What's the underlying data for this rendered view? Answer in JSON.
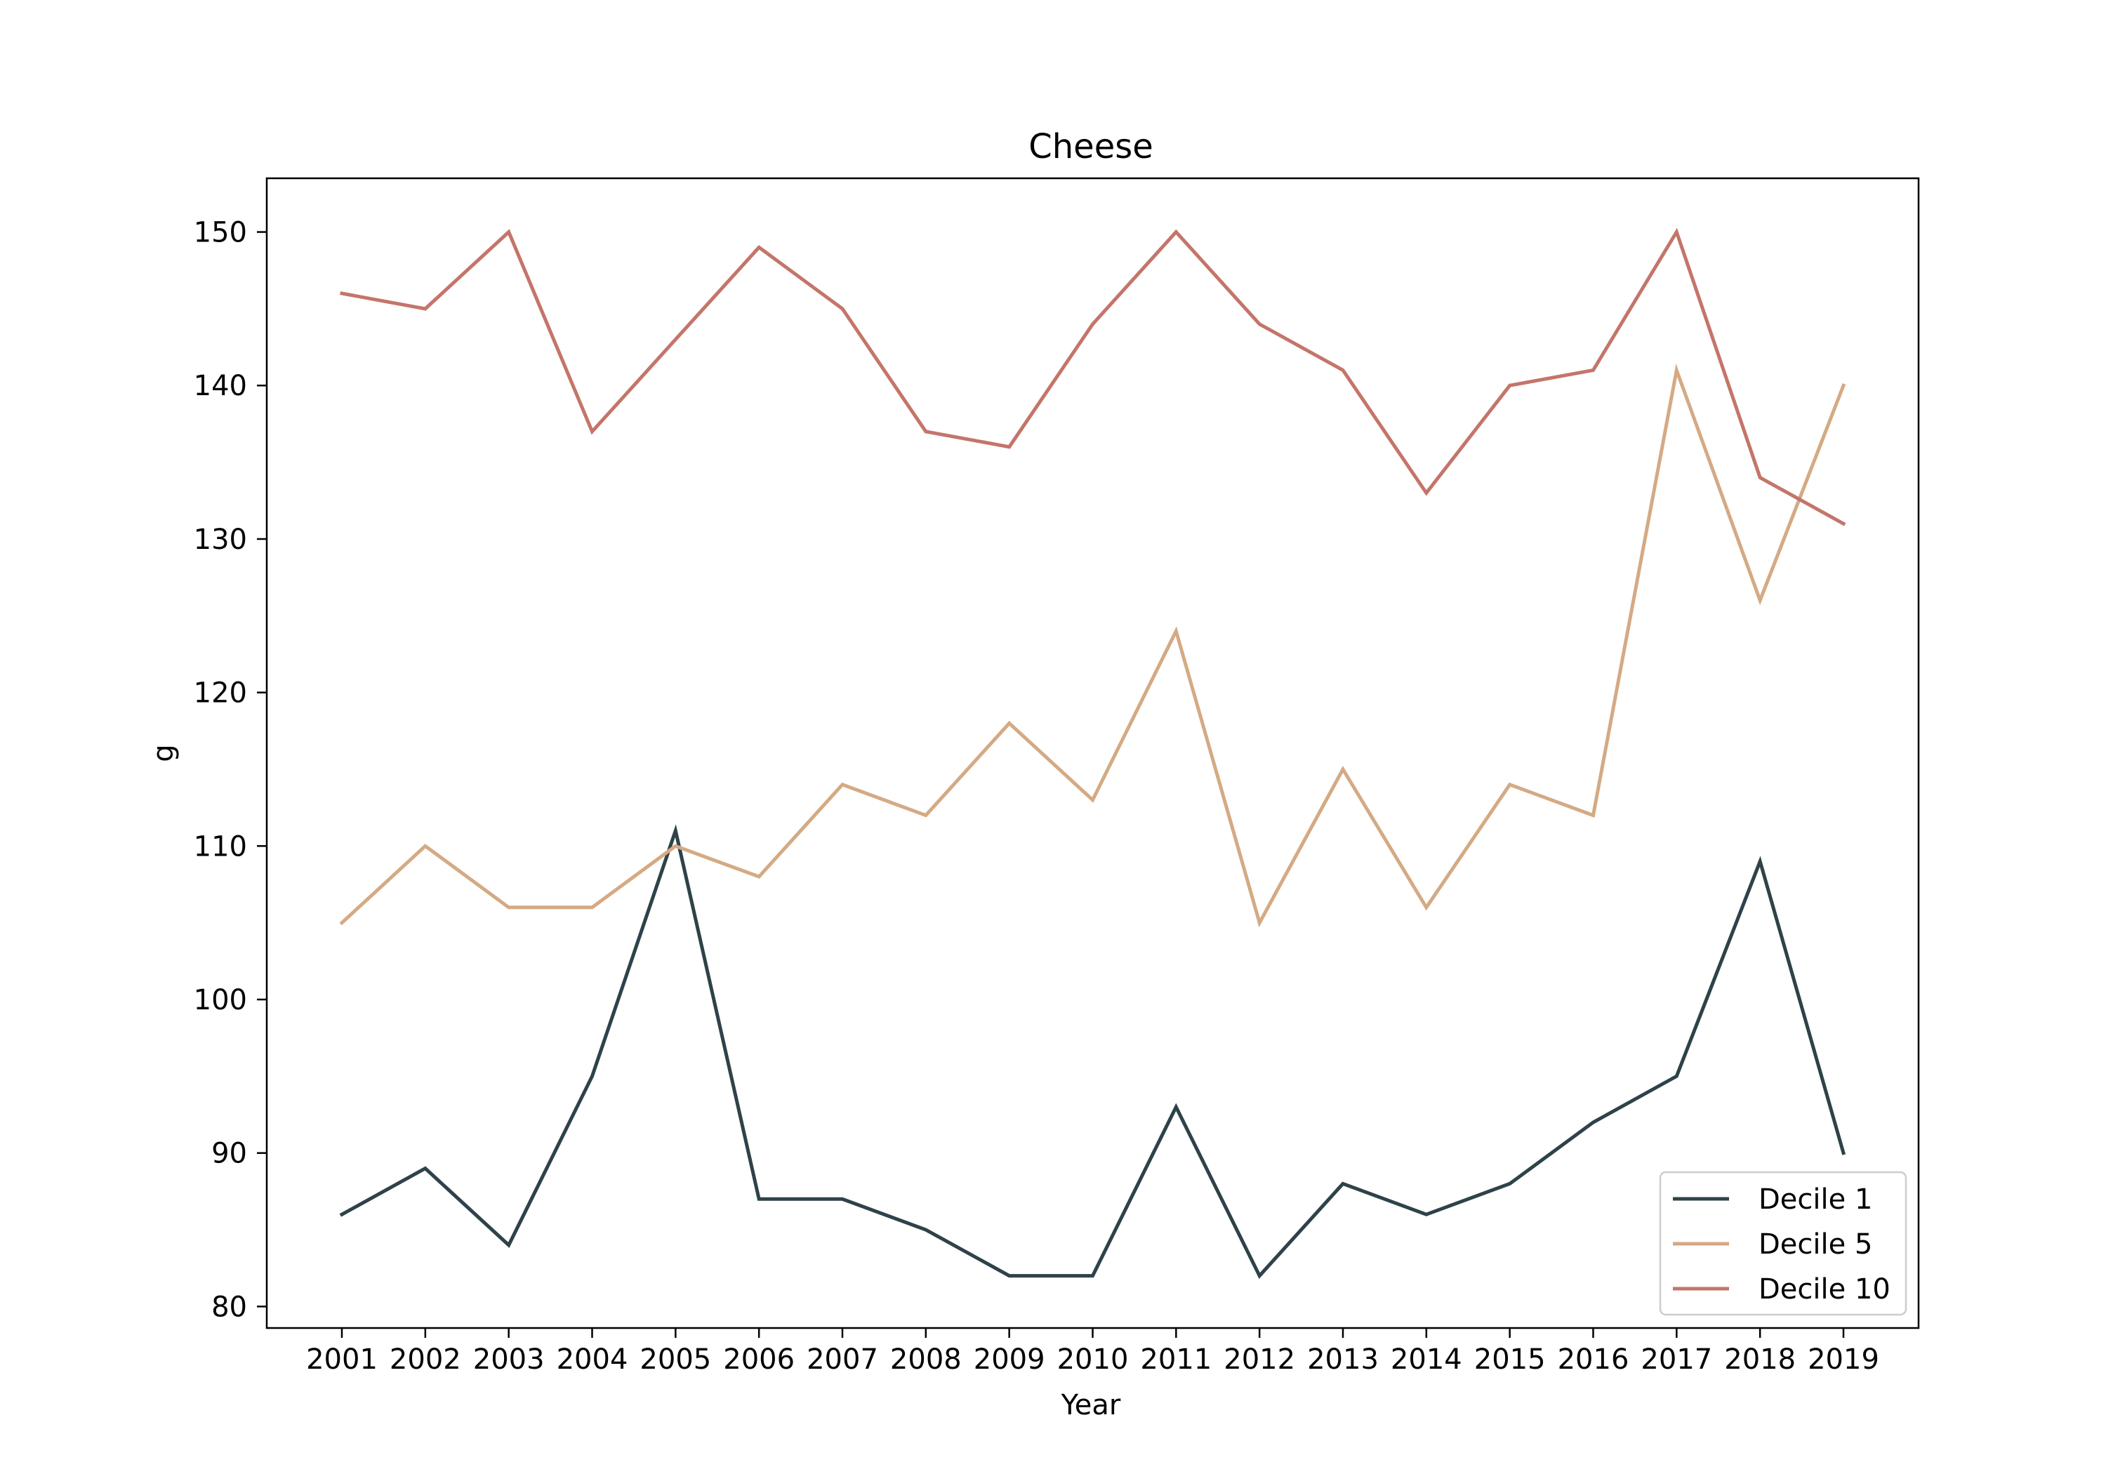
{
  "chart_data": {
    "type": "line",
    "title": "Cheese",
    "xlabel": "Year",
    "ylabel": "g",
    "categories": [
      "2001",
      "2002",
      "2003",
      "2004",
      "2005",
      "2006",
      "2007",
      "2008",
      "2009",
      "2010",
      "2011",
      "2012",
      "2013",
      "2014",
      "2015",
      "2016",
      "2017",
      "2018",
      "2019"
    ],
    "ylim": [
      78.6,
      153.5
    ],
    "yticks": [
      80,
      90,
      100,
      110,
      120,
      130,
      140,
      150
    ],
    "grid": false,
    "legend_position": "lower-right",
    "series": [
      {
        "name": "Decile 1",
        "color": "#2e4249",
        "values": [
          86,
          89,
          84,
          95,
          111,
          87,
          87,
          85,
          82,
          82,
          93,
          82,
          88,
          86,
          88,
          92,
          95,
          109,
          90
        ]
      },
      {
        "name": "Decile 5",
        "color": "#d4aa84",
        "values": [
          105,
          110,
          106,
          106,
          110,
          108,
          114,
          112,
          118,
          113,
          124,
          105,
          115,
          106,
          114,
          112,
          141,
          126,
          140
        ]
      },
      {
        "name": "Decile 10",
        "color": "#c4756a",
        "values": [
          146,
          145,
          150,
          137,
          143,
          149,
          145,
          137,
          136,
          144,
          150,
          144,
          141,
          133,
          140,
          141,
          150,
          134,
          131
        ]
      }
    ]
  }
}
